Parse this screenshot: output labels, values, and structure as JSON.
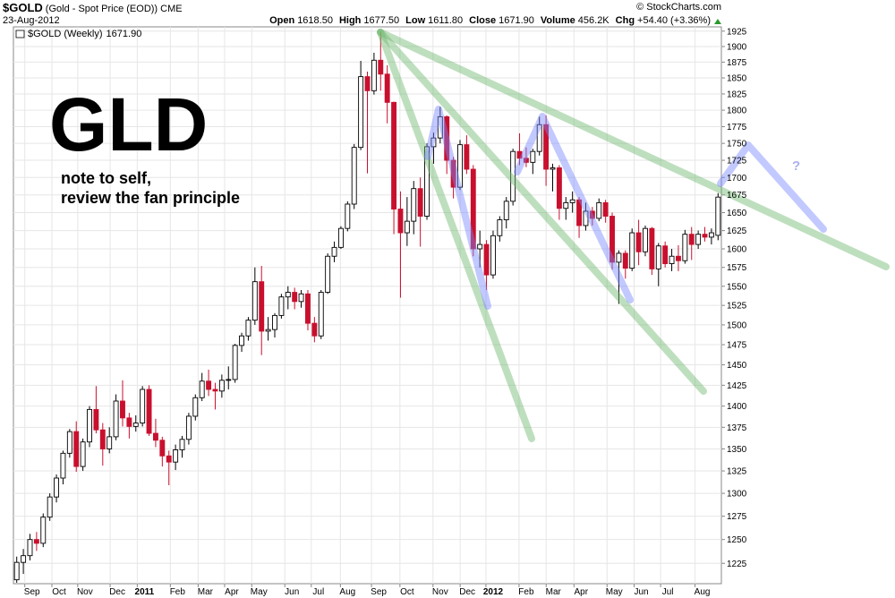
{
  "header": {
    "title": "$GOLD",
    "subtitle": "(Gold - Spot Price (EOD)) CME",
    "date": "23-Aug-2012",
    "source": "© StockCharts.com",
    "stats": [
      {
        "label": "Open",
        "text": "1618.50"
      },
      {
        "label": "High",
        "text": "1677.50"
      },
      {
        "label": "Low",
        "text": "1611.80"
      },
      {
        "label": "Close",
        "text": "1671.90"
      },
      {
        "label": "Volume",
        "text": "456.2K"
      },
      {
        "label": "Chg",
        "text": "+54.40 (+3.36%)"
      }
    ]
  },
  "chart_data": {
    "type": "candlestick",
    "log_scale": true,
    "grid": true,
    "legend": "top-left",
    "legend_value": "1671.90",
    "up_color": "#ffffff",
    "down_color": "#c8102e",
    "ylim": [
      1204,
      1932
    ],
    "yticks": [
      1225,
      1250,
      1275,
      1300,
      1325,
      1350,
      1375,
      1400,
      1425,
      1450,
      1475,
      1500,
      1525,
      1550,
      1575,
      1600,
      1625,
      1650,
      1675,
      1700,
      1725,
      1750,
      1775,
      1800,
      1825,
      1850,
      1875,
      1900,
      1925
    ],
    "xlim": [
      -0.5,
      106.5
    ],
    "xticks": [
      {
        "value": 2.3,
        "label": "Sep"
      },
      {
        "value": 6.4,
        "label": "Oct"
      },
      {
        "value": 10.3,
        "label": "Nov"
      },
      {
        "value": 15.2,
        "label": "Dec"
      },
      {
        "value": 19.3,
        "label": "2011"
      },
      {
        "value": 24.3,
        "label": "Feb"
      },
      {
        "value": 28.5,
        "label": "Mar"
      },
      {
        "value": 32.5,
        "label": "Apr"
      },
      {
        "value": 36.6,
        "label": "May"
      },
      {
        "value": 41.6,
        "label": "Jun"
      },
      {
        "value": 45.6,
        "label": "Jul"
      },
      {
        "value": 50.0,
        "label": "Aug"
      },
      {
        "value": 54.7,
        "label": "Sep"
      },
      {
        "value": 59.0,
        "label": "Oct"
      },
      {
        "value": 64.0,
        "label": "Nov"
      },
      {
        "value": 68.1,
        "label": "Dec"
      },
      {
        "value": 72.0,
        "label": "2012"
      },
      {
        "value": 77.0,
        "label": "Feb"
      },
      {
        "value": 81.1,
        "label": "Mar"
      },
      {
        "value": 85.3,
        "label": "Apr"
      },
      {
        "value": 90.3,
        "label": "May"
      },
      {
        "value": 94.4,
        "label": "Jun"
      },
      {
        "value": 98.4,
        "label": "Jul"
      },
      {
        "value": 103.6,
        "label": "Aug"
      }
    ],
    "annotations": [
      "GLD",
      "note to self,",
      "review the fan principle",
      "?"
    ],
    "series": [
      {
        "name": "$GOLD (Weekly)",
        "open": [
          1208,
          1226,
          1233,
          1250,
          1246,
          1274,
          1296,
          1317,
          1345,
          1370,
          1330,
          1358,
          1396,
          1372,
          1350,
          1364,
          1406,
          1386,
          1376,
          1380,
          1420,
          1368,
          1360,
          1342,
          1335,
          1349,
          1361,
          1388,
          1410,
          1430,
          1420,
          1418,
          1431,
          1432,
          1474,
          1486,
          1506,
          1556,
          1492,
          1494,
          1512,
          1536,
          1542,
          1530,
          1540,
          1502,
          1486,
          1542,
          1590,
          1602,
          1628,
          1662,
          1744,
          1852,
          1830,
          1878,
          1856,
          1812,
          1655,
          1622,
          1638,
          1684,
          1645,
          1745,
          1758,
          1790,
          1725,
          1686,
          1748,
          1712,
          1600,
          1606,
          1565,
          1618,
          1640,
          1666,
          1738,
          1728,
          1722,
          1738,
          1778,
          1712,
          1714,
          1656,
          1664,
          1668,
          1632,
          1652,
          1642,
          1664,
          1645,
          1582,
          1594,
          1574,
          1622,
          1596,
          1628,
          1573,
          1604,
          1580,
          1590,
          1584,
          1620,
          1606,
          1620,
          1616,
          1618.5
        ],
        "high": [
          1232,
          1240,
          1256,
          1258,
          1278,
          1300,
          1321,
          1348,
          1373,
          1382,
          1362,
          1400,
          1424,
          1380,
          1375,
          1414,
          1431,
          1392,
          1389,
          1424,
          1425,
          1385,
          1364,
          1348,
          1355,
          1365,
          1392,
          1414,
          1440,
          1444,
          1428,
          1438,
          1448,
          1476,
          1490,
          1510,
          1575,
          1577,
          1510,
          1515,
          1540,
          1550,
          1548,
          1545,
          1545,
          1510,
          1545,
          1594,
          1610,
          1631,
          1666,
          1749,
          1877,
          1860,
          1890,
          1924,
          1870,
          1813,
          1680,
          1672,
          1695,
          1700,
          1750,
          1766,
          1805,
          1792,
          1730,
          1755,
          1762,
          1718,
          1625,
          1612,
          1625,
          1645,
          1672,
          1742,
          1765,
          1744,
          1742,
          1790,
          1792,
          1720,
          1718,
          1672,
          1680,
          1672,
          1664,
          1658,
          1670,
          1668,
          1650,
          1598,
          1598,
          1628,
          1640,
          1632,
          1630,
          1608,
          1610,
          1600,
          1605,
          1626,
          1630,
          1625,
          1630,
          1628,
          1677.5
        ],
        "low": [
          1205,
          1214,
          1228,
          1238,
          1242,
          1270,
          1290,
          1310,
          1340,
          1324,
          1325,
          1352,
          1368,
          1331,
          1345,
          1360,
          1376,
          1362,
          1370,
          1376,
          1365,
          1352,
          1330,
          1309,
          1326,
          1340,
          1355,
          1383,
          1406,
          1412,
          1396,
          1410,
          1420,
          1428,
          1466,
          1480,
          1500,
          1462,
          1480,
          1484,
          1508,
          1520,
          1520,
          1522,
          1493,
          1478,
          1482,
          1540,
          1582,
          1600,
          1624,
          1655,
          1740,
          1706,
          1824,
          1830,
          1780,
          1620,
          1535,
          1604,
          1620,
          1603,
          1640,
          1720,
          1750,
          1705,
          1670,
          1682,
          1705,
          1590,
          1575,
          1545,
          1560,
          1610,
          1628,
          1660,
          1718,
          1715,
          1705,
          1732,
          1688,
          1680,
          1640,
          1640,
          1650,
          1615,
          1625,
          1632,
          1638,
          1636,
          1572,
          1527,
          1560,
          1570,
          1578,
          1590,
          1565,
          1550,
          1575,
          1570,
          1570,
          1580,
          1585,
          1600,
          1610,
          1606,
          1611.8
        ],
        "close": [
          1226,
          1233,
          1250,
          1246,
          1274,
          1296,
          1317,
          1345,
          1370,
          1330,
          1358,
          1396,
          1372,
          1350,
          1364,
          1406,
          1386,
          1376,
          1380,
          1420,
          1368,
          1360,
          1342,
          1335,
          1349,
          1361,
          1388,
          1410,
          1430,
          1420,
          1418,
          1431,
          1432,
          1474,
          1486,
          1506,
          1556,
          1492,
          1494,
          1512,
          1536,
          1542,
          1530,
          1540,
          1502,
          1486,
          1542,
          1590,
          1602,
          1628,
          1662,
          1744,
          1852,
          1830,
          1878,
          1856,
          1812,
          1655,
          1622,
          1638,
          1684,
          1645,
          1745,
          1758,
          1790,
          1725,
          1686,
          1748,
          1712,
          1600,
          1606,
          1565,
          1618,
          1640,
          1666,
          1738,
          1728,
          1722,
          1738,
          1778,
          1712,
          1714,
          1656,
          1664,
          1668,
          1632,
          1652,
          1642,
          1664,
          1645,
          1582,
          1594,
          1574,
          1622,
          1596,
          1628,
          1573,
          1604,
          1580,
          1590,
          1584,
          1620,
          1606,
          1620,
          1616,
          1622,
          1671.9
        ]
      }
    ]
  }
}
